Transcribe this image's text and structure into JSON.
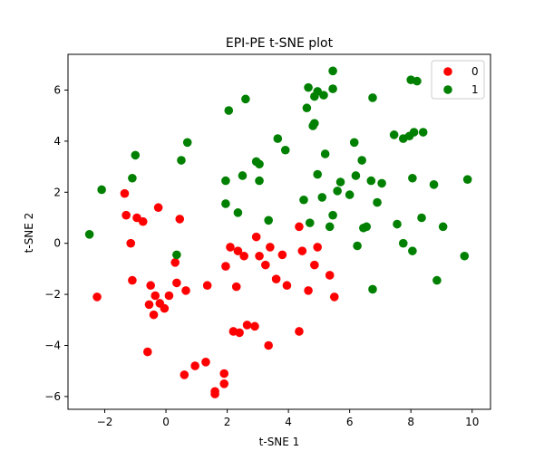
{
  "chart_data": {
    "type": "scatter",
    "title": "EPI-PE t-SNE plot",
    "xlabel": "t-SNE 1",
    "ylabel": "t-SNE 2",
    "xlim": [
      -3.2,
      10.6
    ],
    "ylim": [
      -6.5,
      7.4
    ],
    "xticks": [
      -2,
      0,
      2,
      4,
      6,
      8,
      10
    ],
    "yticks": [
      -6,
      -4,
      -2,
      0,
      2,
      4,
      6
    ],
    "grid": false,
    "legend": "top-right",
    "series": [
      {
        "name": "0",
        "color": "#ff0000",
        "points": [
          [
            -2.25,
            -2.1
          ],
          [
            -1.35,
            1.95
          ],
          [
            -1.3,
            1.1
          ],
          [
            -1.15,
            0.0
          ],
          [
            -1.1,
            -1.45
          ],
          [
            -0.95,
            1.0
          ],
          [
            -0.75,
            0.85
          ],
          [
            -0.6,
            -4.25
          ],
          [
            -0.55,
            -2.4
          ],
          [
            -0.5,
            -1.65
          ],
          [
            -0.4,
            -2.8
          ],
          [
            -0.35,
            -2.05
          ],
          [
            -0.25,
            1.4
          ],
          [
            -0.2,
            -2.35
          ],
          [
            -0.05,
            -2.55
          ],
          [
            0.1,
            -2.05
          ],
          [
            0.3,
            -0.75
          ],
          [
            0.35,
            -1.55
          ],
          [
            0.45,
            0.95
          ],
          [
            0.65,
            -1.85
          ],
          [
            0.6,
            -5.15
          ],
          [
            0.95,
            -4.8
          ],
          [
            1.3,
            -4.65
          ],
          [
            1.35,
            -1.65
          ],
          [
            1.6,
            -5.8
          ],
          [
            1.6,
            -5.9
          ],
          [
            1.9,
            -5.1
          ],
          [
            1.9,
            -5.5
          ],
          [
            1.95,
            -0.9
          ],
          [
            2.1,
            -0.15
          ],
          [
            2.2,
            -3.45
          ],
          [
            2.3,
            -1.7
          ],
          [
            2.35,
            -0.3
          ],
          [
            2.4,
            -3.5
          ],
          [
            2.55,
            -0.5
          ],
          [
            2.65,
            -3.2
          ],
          [
            2.9,
            -3.25
          ],
          [
            2.95,
            0.25
          ],
          [
            3.05,
            -0.5
          ],
          [
            3.25,
            -0.85
          ],
          [
            3.35,
            -4.0
          ],
          [
            3.4,
            -0.15
          ],
          [
            3.6,
            -1.4
          ],
          [
            3.8,
            -0.45
          ],
          [
            3.95,
            -1.65
          ],
          [
            4.35,
            0.65
          ],
          [
            4.35,
            -3.45
          ],
          [
            4.45,
            -0.3
          ],
          [
            4.65,
            -1.85
          ],
          [
            4.85,
            -0.85
          ],
          [
            4.95,
            -0.15
          ],
          [
            5.35,
            -1.25
          ],
          [
            5.5,
            -2.1
          ]
        ]
      },
      {
        "name": "1",
        "color": "#008000",
        "points": [
          [
            -2.5,
            0.35
          ],
          [
            -2.1,
            2.1
          ],
          [
            -1.1,
            2.55
          ],
          [
            -1.0,
            3.45
          ],
          [
            0.35,
            -0.45
          ],
          [
            0.5,
            3.25
          ],
          [
            0.7,
            3.95
          ],
          [
            1.95,
            2.45
          ],
          [
            1.95,
            1.55
          ],
          [
            2.05,
            5.2
          ],
          [
            2.35,
            1.2
          ],
          [
            2.5,
            2.65
          ],
          [
            2.6,
            5.65
          ],
          [
            2.95,
            3.2
          ],
          [
            3.05,
            3.1
          ],
          [
            3.05,
            2.45
          ],
          [
            3.35,
            0.9
          ],
          [
            3.65,
            4.1
          ],
          [
            3.9,
            3.65
          ],
          [
            4.5,
            1.7
          ],
          [
            4.6,
            5.3
          ],
          [
            4.65,
            6.1
          ],
          [
            4.7,
            0.8
          ],
          [
            4.8,
            4.6
          ],
          [
            4.85,
            4.7
          ],
          [
            4.85,
            5.75
          ],
          [
            4.95,
            5.95
          ],
          [
            4.95,
            2.7
          ],
          [
            5.1,
            1.8
          ],
          [
            5.15,
            5.8
          ],
          [
            5.2,
            3.5
          ],
          [
            5.35,
            0.65
          ],
          [
            5.45,
            6.75
          ],
          [
            5.45,
            6.05
          ],
          [
            5.45,
            1.1
          ],
          [
            5.6,
            2.05
          ],
          [
            5.7,
            2.4
          ],
          [
            6.0,
            1.9
          ],
          [
            6.15,
            3.95
          ],
          [
            6.2,
            2.65
          ],
          [
            6.25,
            -0.1
          ],
          [
            6.4,
            3.25
          ],
          [
            6.45,
            0.6
          ],
          [
            6.55,
            0.65
          ],
          [
            6.7,
            2.45
          ],
          [
            6.75,
            5.7
          ],
          [
            6.75,
            -1.8
          ],
          [
            6.9,
            1.6
          ],
          [
            7.05,
            2.35
          ],
          [
            7.45,
            4.25
          ],
          [
            7.55,
            0.75
          ],
          [
            7.75,
            4.1
          ],
          [
            7.75,
            0.0
          ],
          [
            7.95,
            4.2
          ],
          [
            8.0,
            6.4
          ],
          [
            8.05,
            2.55
          ],
          [
            8.05,
            -0.3
          ],
          [
            8.1,
            4.35
          ],
          [
            8.2,
            6.35
          ],
          [
            8.35,
            1.0
          ],
          [
            8.4,
            4.35
          ],
          [
            8.75,
            2.3
          ],
          [
            8.85,
            -1.45
          ],
          [
            9.05,
            0.65
          ],
          [
            9.75,
            -0.5
          ],
          [
            9.85,
            2.5
          ]
        ]
      }
    ]
  }
}
